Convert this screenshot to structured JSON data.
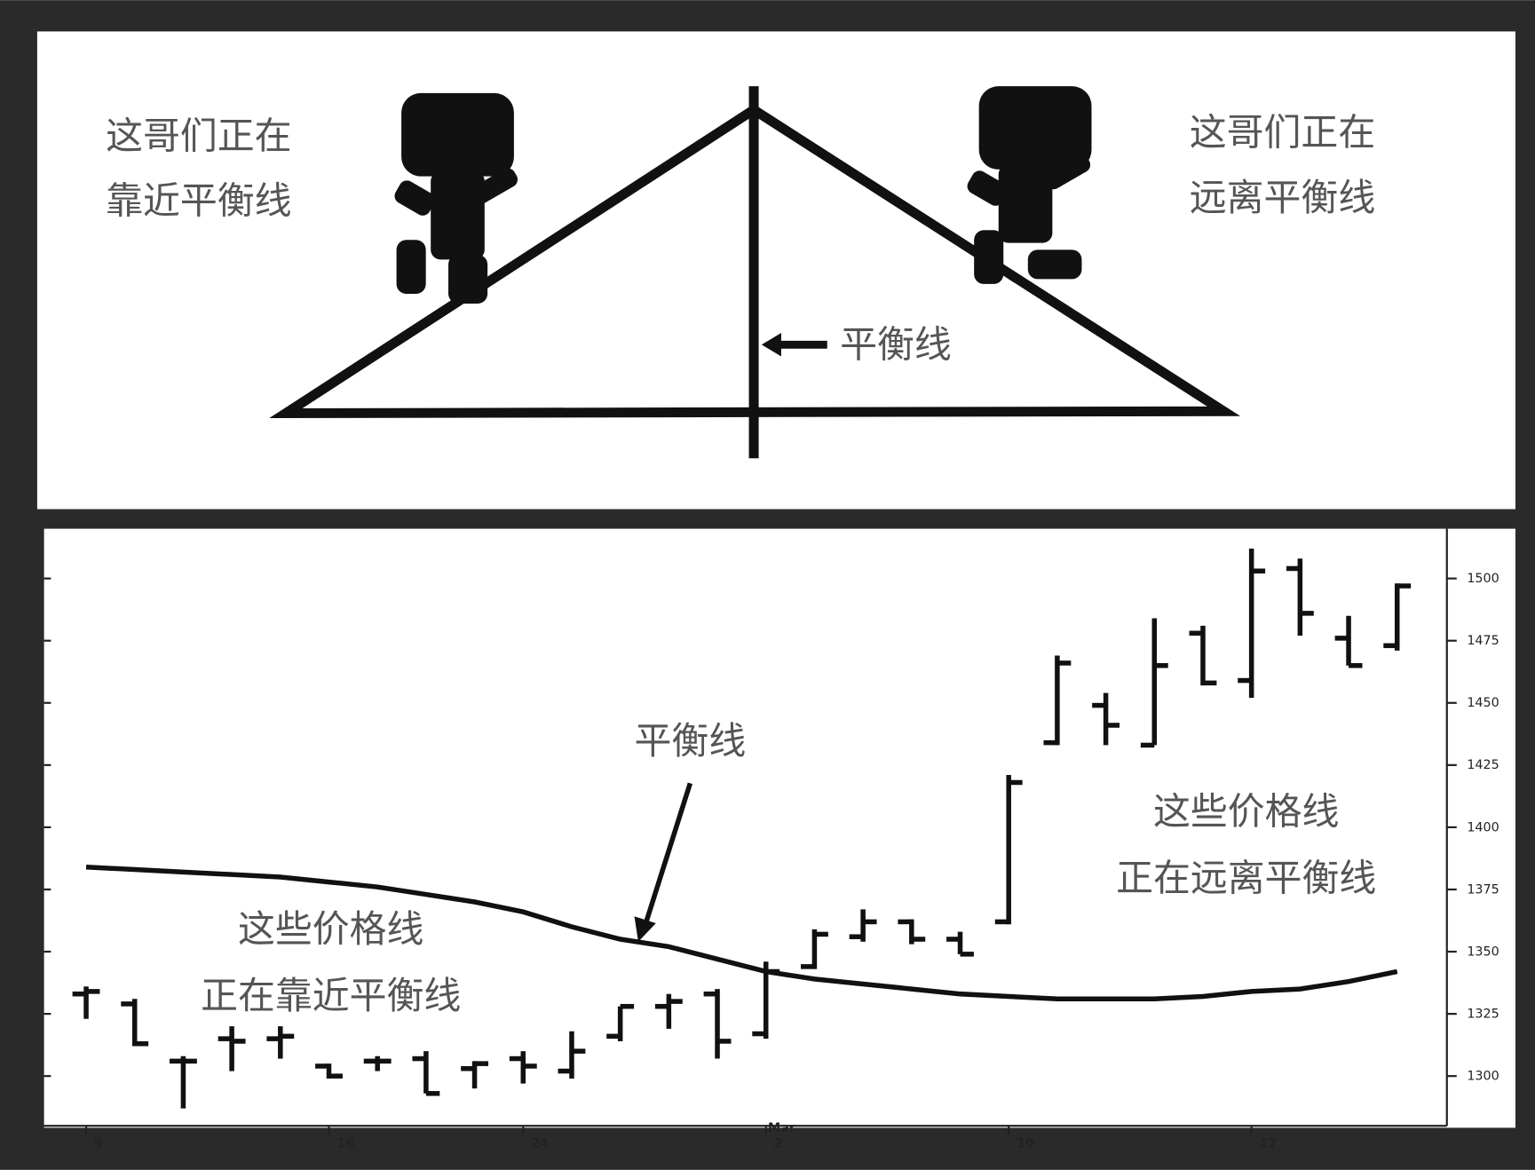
{
  "diagram": {
    "left_text": [
      "这哥们正在",
      "靠近平衡线"
    ],
    "right_text": [
      "这哥们正在",
      "远离平衡线"
    ],
    "line_label": "平衡线"
  },
  "chart_data": {
    "type": "ohlc",
    "color": "#111111",
    "categories": [
      "9",
      null,
      null,
      null,
      null,
      "16",
      null,
      null,
      null,
      "24",
      null,
      null,
      null,
      null,
      "2",
      null,
      null,
      null,
      null,
      "10",
      null,
      null,
      null,
      null,
      "17",
      null,
      null,
      null
    ],
    "month_label": "Mar",
    "open": [
      1333,
      1329,
      1306,
      1315,
      1315,
      1304,
      1306,
      1307,
      1303,
      1307,
      1302,
      1316,
      1328,
      1333,
      1317,
      1344,
      1356,
      1362,
      1355,
      1362,
      1434,
      1449,
      1433,
      1478,
      1459,
      1504,
      1476,
      1473
    ],
    "high": [
      1336,
      1331,
      1308,
      1320,
      1320,
      1305,
      1308,
      1310,
      1306,
      1310,
      1318,
      1328,
      1333,
      1335,
      1346,
      1359,
      1367,
      1363,
      1358,
      1421,
      1469,
      1454,
      1484,
      1481,
      1512,
      1508,
      1485,
      1498
    ],
    "low": [
      1323,
      1312,
      1287,
      1302,
      1307,
      1299,
      1302,
      1293,
      1295,
      1297,
      1299,
      1314,
      1319,
      1307,
      1315,
      1343,
      1354,
      1353,
      1349,
      1361,
      1433,
      1433,
      1433,
      1457,
      1452,
      1477,
      1465,
      1471
    ],
    "close": [
      1334,
      1313,
      1306,
      1314,
      1316,
      1300,
      1306,
      1293,
      1305,
      1304,
      1310,
      1328,
      1330,
      1314,
      1342,
      1357,
      1362,
      1355,
      1349,
      1418,
      1466,
      1441,
      1465,
      1458,
      1503,
      1486,
      1465,
      1497
    ],
    "average": [
      1384,
      1383,
      1382,
      1381,
      1380,
      1378,
      1376,
      1373,
      1370,
      1366,
      1360,
      1355,
      1352,
      1347,
      1342,
      1339,
      1337,
      1335,
      1333,
      1332,
      1331,
      1331,
      1331,
      1332,
      1334,
      1335,
      1338,
      1342
    ],
    "ylim": [
      1280,
      1520
    ],
    "yticks": [
      1300,
      1325,
      1350,
      1375,
      1400,
      1425,
      1450,
      1475,
      1500
    ],
    "annotations": {
      "line_label": "平衡线",
      "near_text": [
        "这些价格线",
        "正在靠近平衡线"
      ],
      "far_text": [
        "这些价格线",
        "正在远离平衡线"
      ]
    }
  }
}
